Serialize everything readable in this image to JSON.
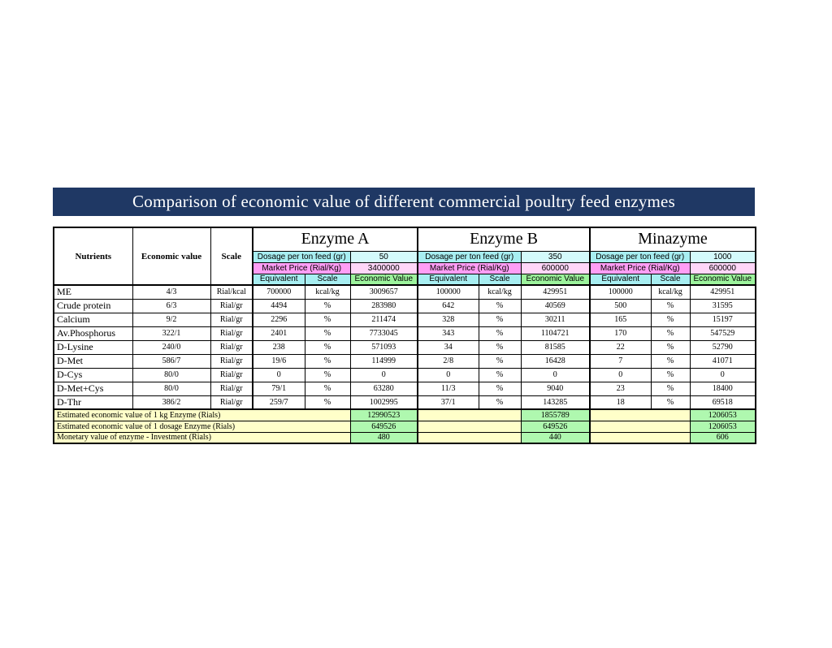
{
  "title": "Comparison of economic value of different commercial poultry feed enzymes",
  "colors": {
    "title_bg": "#1F3864",
    "cyan_header": "#A7EEF1",
    "cyan_light": "#D4FAFB",
    "pink_header": "#FF9EF5",
    "pink_light": "#FFD6F8",
    "green_header": "#9CF39C",
    "green_light": "#CCFFCC",
    "yellow": "#FFFFC9"
  },
  "header": {
    "nutrients": "Nutrients",
    "economic_value": "Economic value",
    "scale": "Scale"
  },
  "groups": [
    {
      "name": "Enzyme A",
      "dosage_label": "Dosage per ton feed (gr)",
      "dosage": "50",
      "price_label": "Market Price (Rial/Kg)",
      "price": "3400000",
      "equivalent_label": "Equivalent",
      "scale_label": "Scale",
      "economic_value_label": "Economic Value"
    },
    {
      "name": "Enzyme B",
      "dosage_label": "Dosage per ton feed (gr)",
      "dosage": "350",
      "price_label": "Market Price (Rial/Kg)",
      "price": "600000",
      "equivalent_label": "Equivalent",
      "scale_label": "Scale",
      "economic_value_label": "Economic Value"
    },
    {
      "name": "Minazyme",
      "dosage_label": "Dosage per ton feed (gr)",
      "dosage": "1000",
      "price_label": "Market Price (Rial/Kg)",
      "price": "600000",
      "equivalent_label": "Equivalent",
      "scale_label": "Scale",
      "economic_value_label": "Economic Value"
    }
  ],
  "rows": [
    {
      "nutrient": "ME",
      "economic_value": "4/3",
      "scale": "Rial/kcal",
      "values": [
        [
          "700000",
          "kcal/kg",
          "3009657"
        ],
        [
          "100000",
          "kcal/kg",
          "429951"
        ],
        [
          "100000",
          "kcal/kg",
          "429951"
        ]
      ]
    },
    {
      "nutrient": "Crude protein",
      "economic_value": "6/3",
      "scale": "Rial/gr",
      "values": [
        [
          "4494",
          "%",
          "283980"
        ],
        [
          "642",
          "%",
          "40569"
        ],
        [
          "500",
          "%",
          "31595"
        ]
      ]
    },
    {
      "nutrient": "Calcium",
      "economic_value": "9/2",
      "scale": "Rial/gr",
      "values": [
        [
          "2296",
          "%",
          "211474"
        ],
        [
          "328",
          "%",
          "30211"
        ],
        [
          "165",
          "%",
          "15197"
        ]
      ]
    },
    {
      "nutrient": "Av.Phosphorus",
      "economic_value": "322/1",
      "scale": "Rial/gr",
      "values": [
        [
          "2401",
          "%",
          "7733045"
        ],
        [
          "343",
          "%",
          "1104721"
        ],
        [
          "170",
          "%",
          "547529"
        ]
      ]
    },
    {
      "nutrient": "D-Lysine",
      "economic_value": "240/0",
      "scale": "Rial/gr",
      "values": [
        [
          "238",
          "%",
          "571093"
        ],
        [
          "34",
          "%",
          "81585"
        ],
        [
          "22",
          "%",
          "52790"
        ]
      ]
    },
    {
      "nutrient": "D-Met",
      "economic_value": "586/7",
      "scale": "Rial/gr",
      "values": [
        [
          "19/6",
          "%",
          "114999"
        ],
        [
          "2/8",
          "%",
          "16428"
        ],
        [
          "7",
          "%",
          "41071"
        ]
      ]
    },
    {
      "nutrient": "D-Cys",
      "economic_value": "80/0",
      "scale": "Rial/gr",
      "values": [
        [
          "0",
          "%",
          "0"
        ],
        [
          "0",
          "%",
          "0"
        ],
        [
          "0",
          "%",
          "0"
        ]
      ]
    },
    {
      "nutrient": "D-Met+Cys",
      "economic_value": "80/0",
      "scale": "Rial/gr",
      "values": [
        [
          "79/1",
          "%",
          "63280"
        ],
        [
          "11/3",
          "%",
          "9040"
        ],
        [
          "23",
          "%",
          "18400"
        ]
      ]
    },
    {
      "nutrient": "D-Thr",
      "economic_value": "386/2",
      "scale": "Rial/gr",
      "values": [
        [
          "259/7",
          "%",
          "1002995"
        ],
        [
          "37/1",
          "%",
          "143285"
        ],
        [
          "18",
          "%",
          "69518"
        ]
      ]
    }
  ],
  "summary_rows": [
    {
      "label": "Estimated economic value of 1 kg Enzyme (Rials)",
      "values": [
        "12990523",
        "1855789",
        "1206053"
      ]
    },
    {
      "label": "Estimated economic value of 1 dosage Enzyme (Rials)",
      "values": [
        "649526",
        "649526",
        "1206053"
      ]
    },
    {
      "label": "Monetary value of enzyme - Investment (Rials)",
      "values": [
        "480",
        "440",
        "606"
      ]
    }
  ]
}
